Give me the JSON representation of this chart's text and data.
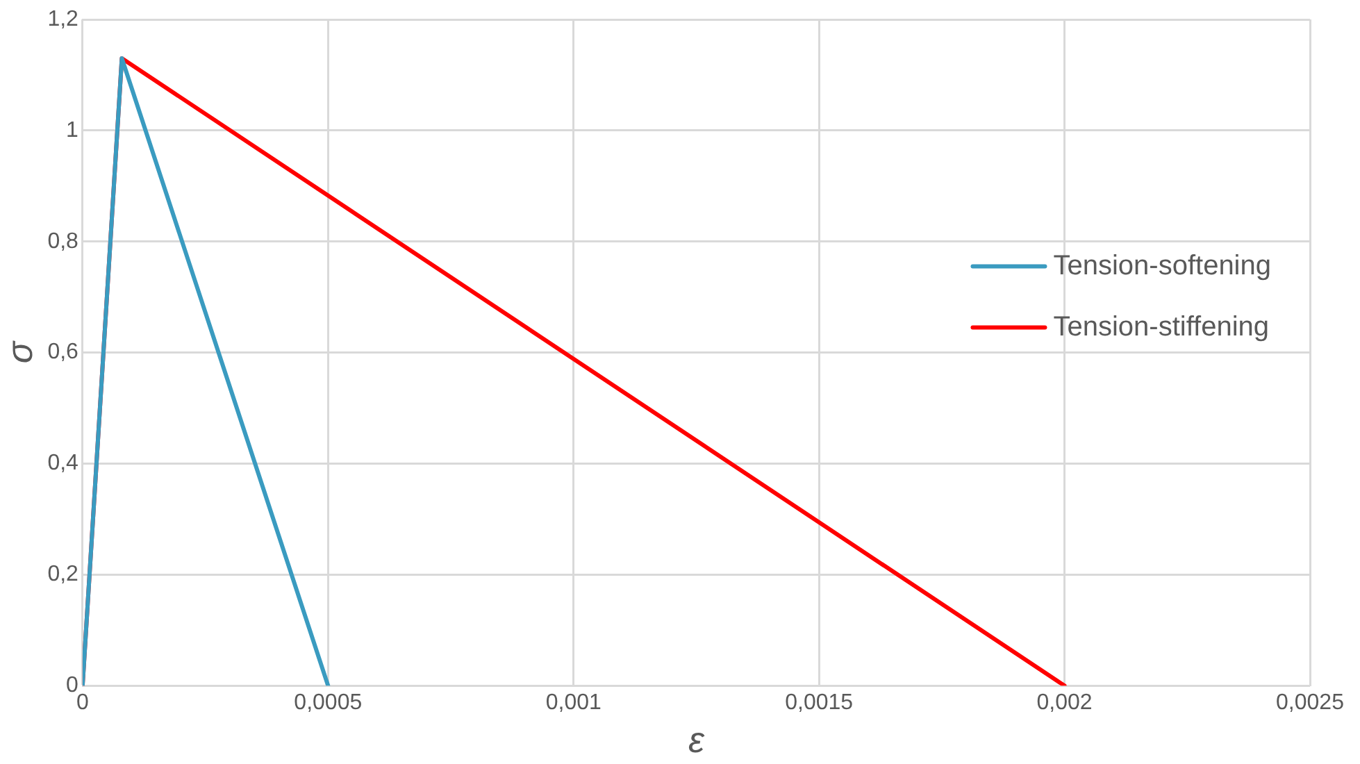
{
  "chart_data": {
    "type": "line",
    "xlabel": "ε",
    "ylabel": "σ",
    "xlim": [
      0,
      0.0025
    ],
    "xticks": [
      0,
      {
        "value": 0.0005,
        "label": "0,0005"
      },
      {
        "value": 0.001,
        "label": "0,001"
      },
      {
        "value": 0.0015,
        "label": "0,0015"
      },
      {
        "value": 0.002,
        "label": "0,002"
      },
      {
        "value": 0.0025,
        "label": "0,0025"
      }
    ],
    "ylim": [
      0,
      1.2
    ],
    "yticks": [
      0,
      {
        "value": 0.2,
        "label": "0,2"
      },
      {
        "value": 0.4,
        "label": "0,4"
      },
      {
        "value": 0.6,
        "label": "0,6"
      },
      {
        "value": 0.8,
        "label": "0,8"
      },
      1,
      {
        "value": 1.2,
        "label": "1,2"
      }
    ],
    "grid": true,
    "legend": "right",
    "marker": "none",
    "line_style": "solid",
    "series": [
      {
        "name": "Tension-softening",
        "color": "#3a9bc0",
        "x": [
          0,
          8e-05,
          0.0005
        ],
        "values": [
          0,
          1.13,
          0
        ]
      },
      {
        "name": "Tension-stiffening",
        "color": "#ff0000",
        "x": [
          0,
          8e-05,
          0.002
        ],
        "values": [
          0,
          1.13,
          0
        ]
      }
    ]
  }
}
